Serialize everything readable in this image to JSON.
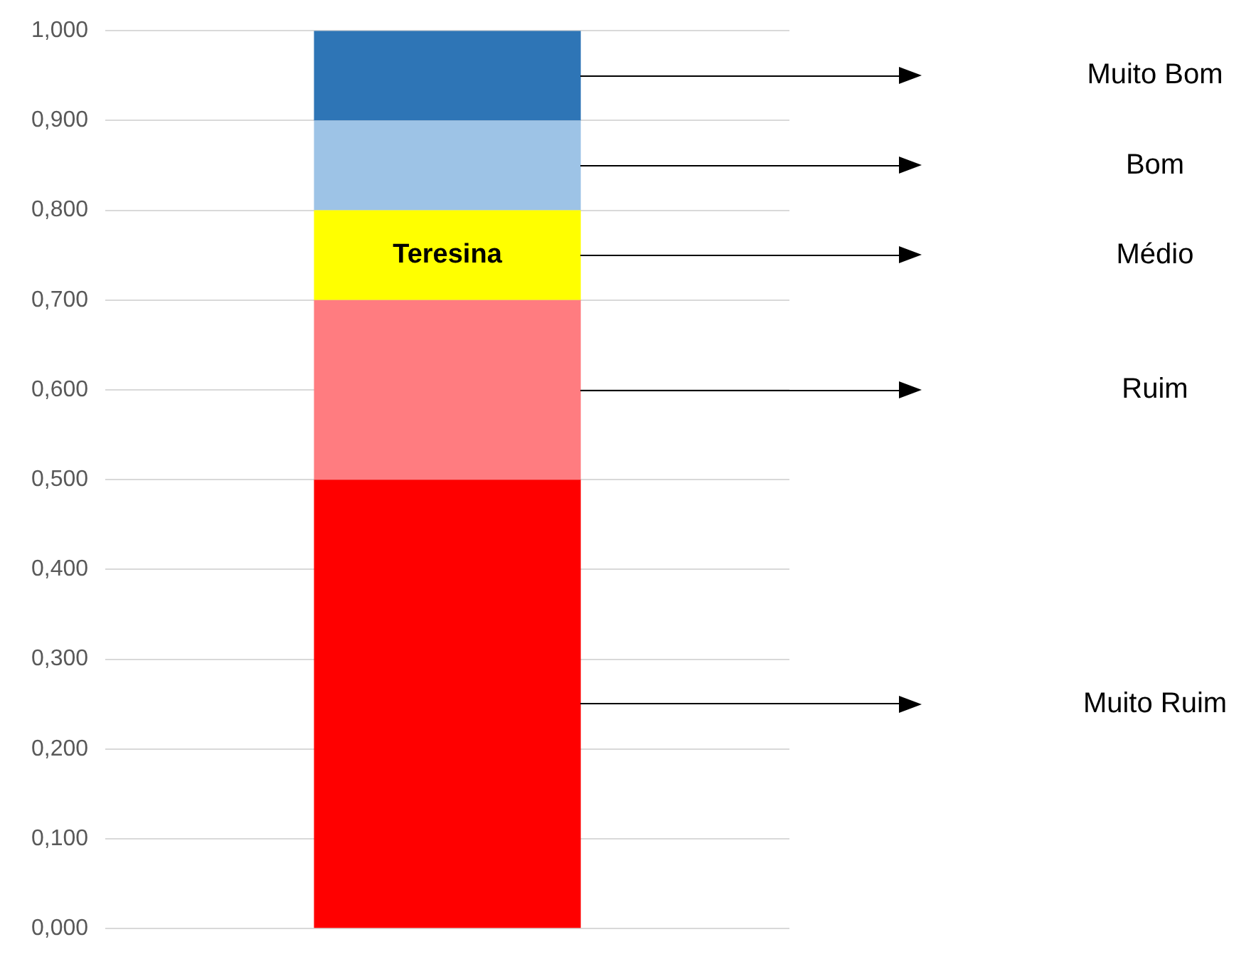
{
  "chart_data": {
    "type": "bar",
    "stacked": true,
    "categories": [
      null
    ],
    "series": [
      {
        "name": "Muito Ruim",
        "color": "#ff0000",
        "values": [
          0.5
        ]
      },
      {
        "name": "Ruim",
        "color": "#ff7c80",
        "values": [
          0.2
        ]
      },
      {
        "name": "Médio",
        "color": "#ffff00",
        "values": [
          0.1
        ]
      },
      {
        "name": "Bom",
        "color": "#9dc3e6",
        "values": [
          0.1
        ]
      },
      {
        "name": "Muito Bom",
        "color": "#2e75b6",
        "values": [
          0.1
        ]
      }
    ],
    "ylim": [
      0,
      1
    ],
    "yticks": [
      {
        "value": 0,
        "label": "0,000"
      },
      {
        "value": 0.1,
        "label": "0,100"
      },
      {
        "value": 0.2,
        "label": "0,200"
      },
      {
        "value": 0.3,
        "label": "0,300"
      },
      {
        "value": 0.4,
        "label": "0,400"
      },
      {
        "value": 0.5,
        "label": "0,500"
      },
      {
        "value": 0.6,
        "label": "0,600"
      },
      {
        "value": 0.7,
        "label": "0,700"
      },
      {
        "value": 0.8,
        "label": "0,800"
      },
      {
        "value": 0.9,
        "label": "0,900"
      },
      {
        "value": 1,
        "label": "1,000"
      }
    ],
    "grid": "y",
    "legend": false,
    "annotations": [
      "Teresina"
    ]
  }
}
